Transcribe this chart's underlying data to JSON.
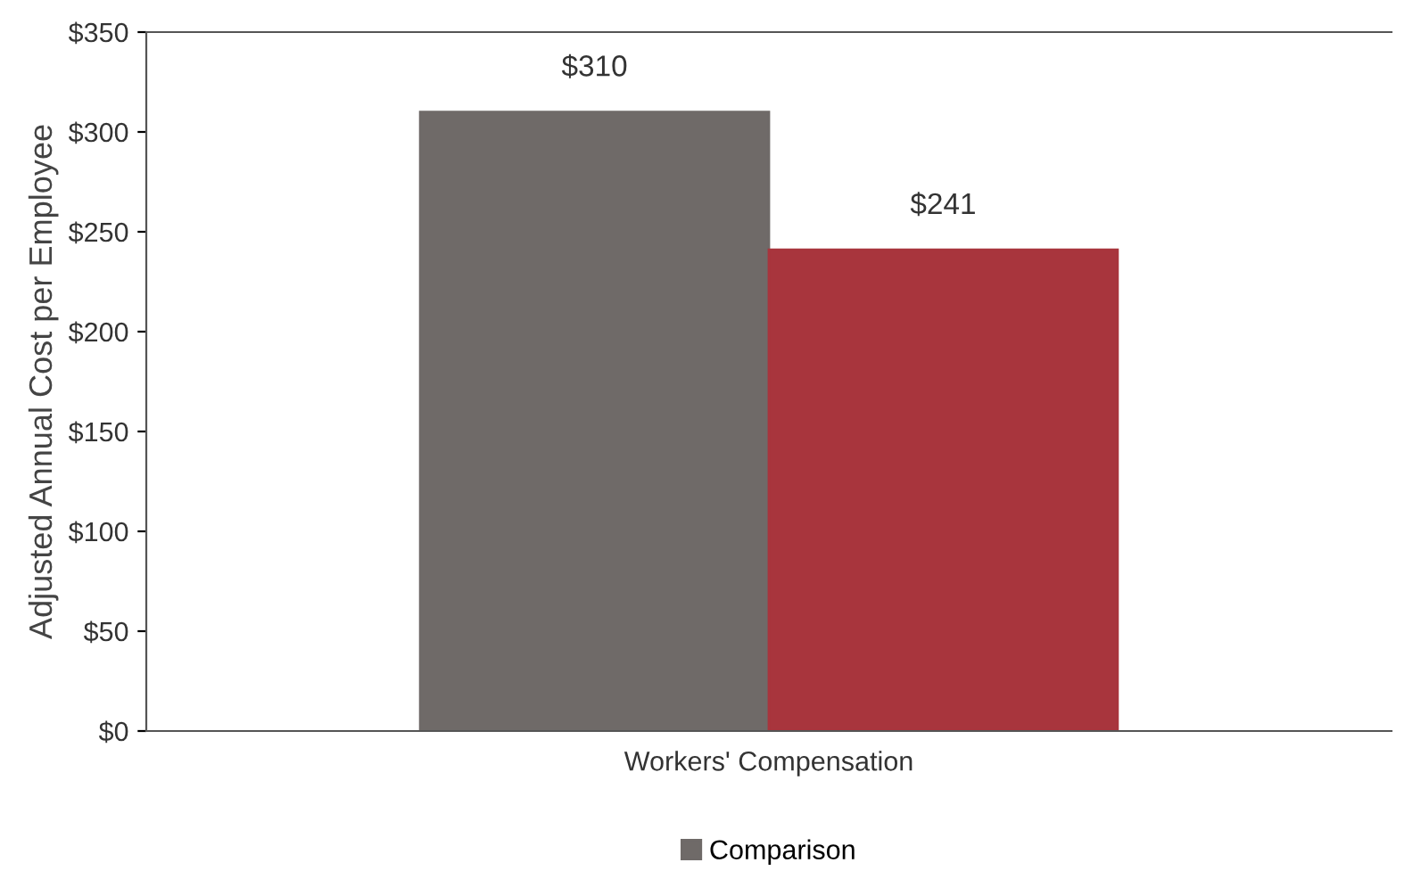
{
  "chart_data": {
    "type": "bar",
    "ylabel": "Adjusted Annual Cost per Employee",
    "categories": [
      "Workers' Compensation"
    ],
    "series": [
      {
        "name": "Comparison",
        "color": "#6f6a68",
        "values": [
          310
        ],
        "value_labels": [
          "$310"
        ]
      },
      {
        "color": "#a8353d",
        "values": [
          241
        ],
        "value_labels": [
          "$241"
        ]
      }
    ],
    "ylim": [
      0,
      350
    ],
    "yticks": [
      {
        "value": 0,
        "label": "$0"
      },
      {
        "value": 50,
        "label": "$50"
      },
      {
        "value": 100,
        "label": "$100"
      },
      {
        "value": 150,
        "label": "$150"
      },
      {
        "value": 200,
        "label": "$200"
      },
      {
        "value": 250,
        "label": "$250"
      },
      {
        "value": 300,
        "label": "$300"
      },
      {
        "value": 350,
        "label": "$350"
      }
    ],
    "grid": false,
    "legend": "bottom"
  }
}
